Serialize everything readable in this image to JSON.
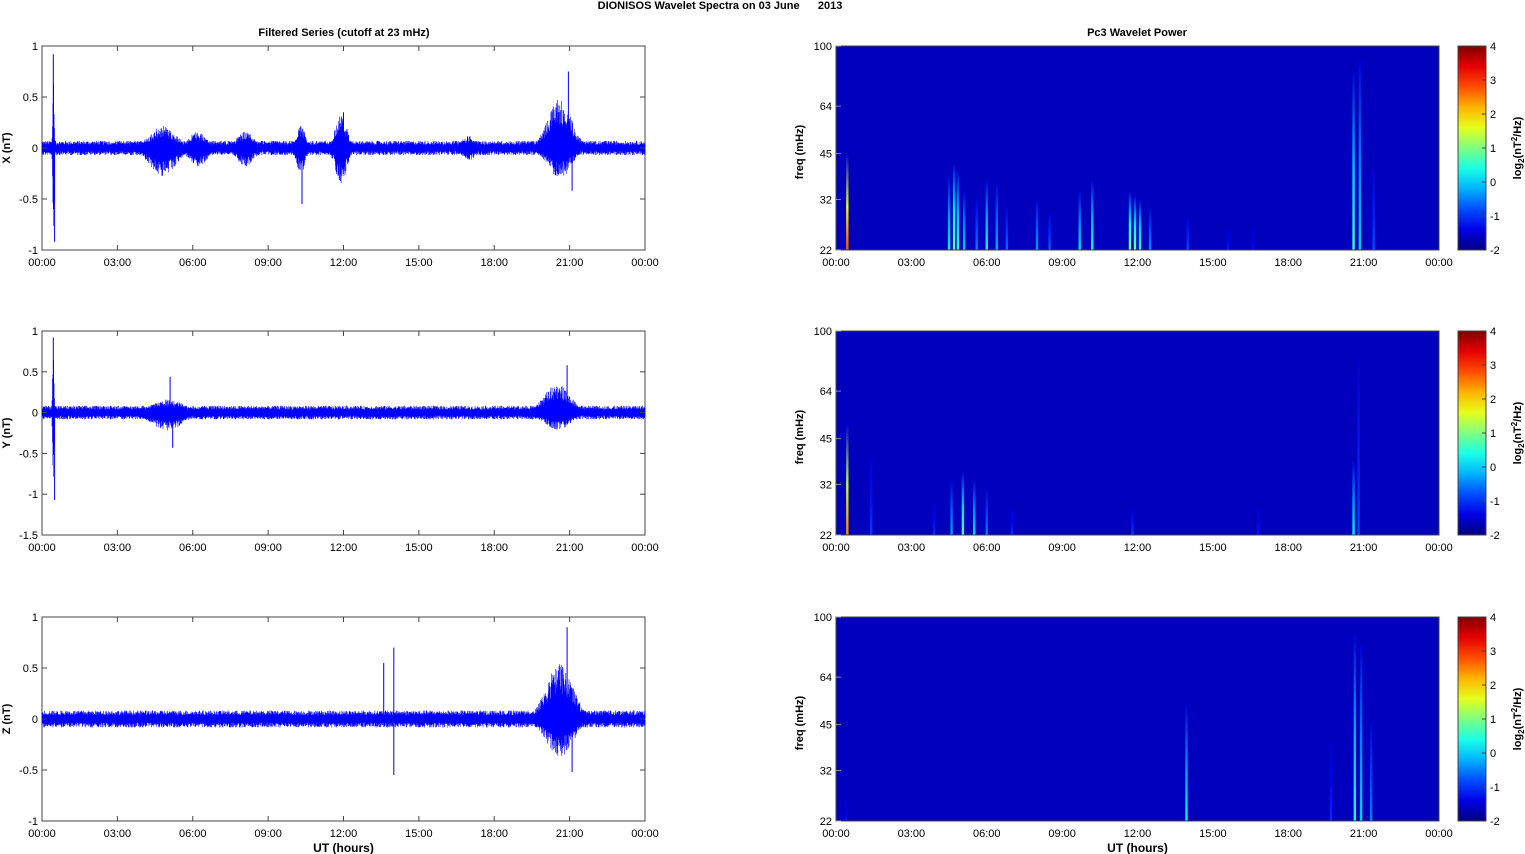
{
  "figure": {
    "title": "DIONISOS Wavelet Spectra on 03 June      2013",
    "left_column_title": "Filtered Series (cutoff at 23 mHz)",
    "right_column_title": "Pc3 Wavelet Power",
    "xlabel": "UT (hours)"
  },
  "chart_data": [
    {
      "type": "line",
      "title": "Filtered Series (cutoff at 23 mHz)",
      "ylabel": "X (nT)",
      "xlabel": "",
      "x_ticks": [
        "00:00",
        "03:00",
        "06:00",
        "09:00",
        "12:00",
        "15:00",
        "18:00",
        "21:00",
        "00:00"
      ],
      "xlim": [
        0,
        24
      ],
      "ylim": [
        -1,
        1
      ],
      "y_ticks": [
        -1,
        -0.5,
        0,
        0.5,
        1
      ],
      "series": [
        {
          "color": "#0000ff"
        }
      ],
      "envelope": {
        "baseline": 0.05,
        "bursts": [
          {
            "t": 0.45,
            "amp": 0.93,
            "neg": 0.92,
            "w": 0.05
          },
          {
            "t": 4.8,
            "amp": 0.22,
            "neg": 0.28,
            "w": 0.9
          },
          {
            "t": 6.2,
            "amp": 0.16,
            "neg": 0.2,
            "w": 0.6
          },
          {
            "t": 8.1,
            "amp": 0.16,
            "neg": 0.18,
            "w": 0.6
          },
          {
            "t": 10.3,
            "amp": 0.22,
            "neg": 0.25,
            "w": 0.3
          },
          {
            "t": 11.9,
            "amp": 0.33,
            "neg": 0.35,
            "w": 0.4
          },
          {
            "t": 17.0,
            "amp": 0.12,
            "neg": 0.12,
            "w": 0.5
          },
          {
            "t": 20.6,
            "amp": 0.48,
            "neg": 0.3,
            "w": 0.8
          }
        ],
        "spikes": [
          {
            "t": 0.45,
            "v": 0.92
          },
          {
            "t": 0.5,
            "v": -0.92
          },
          {
            "t": 10.35,
            "v": -0.55
          },
          {
            "t": 12.0,
            "v": 0.35
          },
          {
            "t": 20.95,
            "v": 0.75
          },
          {
            "t": 21.1,
            "v": -0.42
          }
        ]
      }
    },
    {
      "type": "line",
      "ylabel": "Y (nT)",
      "x_ticks": [
        "00:00",
        "03:00",
        "06:00",
        "09:00",
        "12:00",
        "15:00",
        "18:00",
        "21:00",
        "00:00"
      ],
      "xlim": [
        0,
        24
      ],
      "ylim": [
        -1.5,
        1
      ],
      "y_ticks": [
        -1.5,
        -1,
        -0.5,
        0,
        0.5,
        1
      ],
      "series": [
        {
          "color": "#0000ff"
        }
      ],
      "envelope": {
        "baseline": 0.06,
        "bursts": [
          {
            "t": 0.45,
            "amp": 0.9,
            "neg": 1.05,
            "w": 0.05
          },
          {
            "t": 5.0,
            "amp": 0.17,
            "neg": 0.22,
            "w": 1.1
          },
          {
            "t": 20.5,
            "amp": 0.35,
            "neg": 0.22,
            "w": 0.9
          }
        ],
        "spikes": [
          {
            "t": 0.45,
            "v": 0.92
          },
          {
            "t": 0.5,
            "v": -1.07
          },
          {
            "t": 5.1,
            "v": 0.44
          },
          {
            "t": 5.2,
            "v": -0.43
          },
          {
            "t": 20.9,
            "v": 0.58
          }
        ]
      }
    },
    {
      "type": "line",
      "ylabel": "Z (nT)",
      "xlabel": "UT (hours)",
      "x_ticks": [
        "00:00",
        "03:00",
        "06:00",
        "09:00",
        "12:00",
        "15:00",
        "18:00",
        "21:00",
        "00:00"
      ],
      "xlim": [
        0,
        24
      ],
      "ylim": [
        -1,
        1
      ],
      "y_ticks": [
        -1,
        -0.5,
        0,
        0.5,
        1
      ],
      "series": [
        {
          "color": "#0000ff"
        }
      ],
      "envelope": {
        "baseline": 0.06,
        "bursts": [
          {
            "t": 20.6,
            "amp": 0.55,
            "neg": 0.38,
            "w": 0.9
          }
        ],
        "spikes": [
          {
            "t": 13.6,
            "v": 0.55
          },
          {
            "t": 14.0,
            "v": 0.7
          },
          {
            "t": 14.0,
            "v": -0.55
          },
          {
            "t": 20.9,
            "v": 0.9
          },
          {
            "t": 21.1,
            "v": -0.52
          }
        ]
      }
    },
    {
      "type": "heatmap",
      "title": "Pc3 Wavelet Power",
      "ylabel": "freq (mHz)",
      "colorbar_label": "log2(nT^2/Hz)",
      "x_ticks": [
        "00:00",
        "03:00",
        "06:00",
        "09:00",
        "12:00",
        "15:00",
        "18:00",
        "21:00",
        "00:00"
      ],
      "y_ticks": [
        100,
        64,
        45,
        32,
        22
      ],
      "ylim": [
        22,
        100
      ],
      "y_scale": "log",
      "clim": [
        -2,
        4
      ],
      "colorbar_ticks": [
        4,
        3,
        2,
        1,
        0,
        -1,
        -2
      ],
      "colormap": "jet",
      "background": -2,
      "streaks": [
        {
          "t": 0.45,
          "top": 45,
          "v": 2.8
        },
        {
          "t": 4.5,
          "top": 38,
          "v": 0.2
        },
        {
          "t": 4.7,
          "top": 42,
          "v": 0.9
        },
        {
          "t": 4.85,
          "top": 40,
          "v": 0.5
        },
        {
          "t": 5.1,
          "top": 34,
          "v": 0.0
        },
        {
          "t": 5.6,
          "top": 32,
          "v": -0.5
        },
        {
          "t": 6.0,
          "top": 37,
          "v": 0.3
        },
        {
          "t": 6.4,
          "top": 36,
          "v": -0.2
        },
        {
          "t": 6.8,
          "top": 30,
          "v": -0.6
        },
        {
          "t": 8.0,
          "top": 32,
          "v": -0.3
        },
        {
          "t": 8.5,
          "top": 29,
          "v": -0.7
        },
        {
          "t": 9.7,
          "top": 34,
          "v": 0.1
        },
        {
          "t": 10.2,
          "top": 37,
          "v": 0.4
        },
        {
          "t": 11.7,
          "top": 34,
          "v": 1.0
        },
        {
          "t": 11.9,
          "top": 33,
          "v": 0.9
        },
        {
          "t": 12.1,
          "top": 32,
          "v": 0.6
        },
        {
          "t": 12.5,
          "top": 30,
          "v": -0.4
        },
        {
          "t": 14.0,
          "top": 28,
          "v": -0.8
        },
        {
          "t": 15.6,
          "top": 26,
          "v": -1.1
        },
        {
          "t": 16.6,
          "top": 26,
          "v": -1.2
        },
        {
          "t": 20.6,
          "top": 82,
          "v": 0.6
        },
        {
          "t": 20.85,
          "top": 90,
          "v": 0.0
        },
        {
          "t": 21.4,
          "top": 40,
          "v": -0.8
        }
      ]
    },
    {
      "type": "heatmap",
      "ylabel": "freq (mHz)",
      "colorbar_label": "log2(nT^2/Hz)",
      "x_ticks": [
        "00:00",
        "03:00",
        "06:00",
        "09:00",
        "12:00",
        "15:00",
        "18:00",
        "21:00",
        "00:00"
      ],
      "y_ticks": [
        100,
        64,
        45,
        32,
        22
      ],
      "ylim": [
        22,
        100
      ],
      "y_scale": "log",
      "clim": [
        -2,
        4
      ],
      "colorbar_ticks": [
        4,
        3,
        2,
        1,
        0,
        -1,
        -2
      ],
      "colormap": "jet",
      "background": -2,
      "streaks": [
        {
          "t": 0.45,
          "top": 50,
          "v": 2.5
        },
        {
          "t": 1.4,
          "top": 39,
          "v": -0.9
        },
        {
          "t": 3.9,
          "top": 28,
          "v": -1.0
        },
        {
          "t": 4.6,
          "top": 33,
          "v": -0.3
        },
        {
          "t": 5.05,
          "top": 35,
          "v": 0.7
        },
        {
          "t": 5.5,
          "top": 33,
          "v": 0.1
        },
        {
          "t": 6.0,
          "top": 31,
          "v": -0.5
        },
        {
          "t": 7.0,
          "top": 27,
          "v": -1.0
        },
        {
          "t": 11.8,
          "top": 27,
          "v": -0.9
        },
        {
          "t": 16.8,
          "top": 27,
          "v": -1.1
        },
        {
          "t": 20.6,
          "top": 38,
          "v": 0.2
        },
        {
          "t": 20.8,
          "top": 80,
          "v": -0.8
        }
      ]
    },
    {
      "type": "heatmap",
      "ylabel": "freq (mHz)",
      "xlabel": "UT (hours)",
      "colorbar_label": "log2(nT^2/Hz)",
      "x_ticks": [
        "00:00",
        "03:00",
        "06:00",
        "09:00",
        "12:00",
        "15:00",
        "18:00",
        "21:00",
        "00:00"
      ],
      "y_ticks": [
        100,
        64,
        45,
        32,
        22
      ],
      "ylim": [
        22,
        100
      ],
      "y_scale": "log",
      "clim": [
        -2,
        4
      ],
      "colorbar_ticks": [
        4,
        3,
        2,
        1,
        0,
        -1,
        -2
      ],
      "colormap": "jet",
      "background": -2,
      "streaks": [
        {
          "t": 0.4,
          "top": 26,
          "v": -1.2
        },
        {
          "t": 13.95,
          "top": 52,
          "v": 0.2
        },
        {
          "t": 19.7,
          "top": 40,
          "v": -1.0
        },
        {
          "t": 20.65,
          "top": 88,
          "v": 0.4
        },
        {
          "t": 20.9,
          "top": 82,
          "v": 0.0
        },
        {
          "t": 21.3,
          "top": 46,
          "v": -0.5
        }
      ]
    }
  ]
}
